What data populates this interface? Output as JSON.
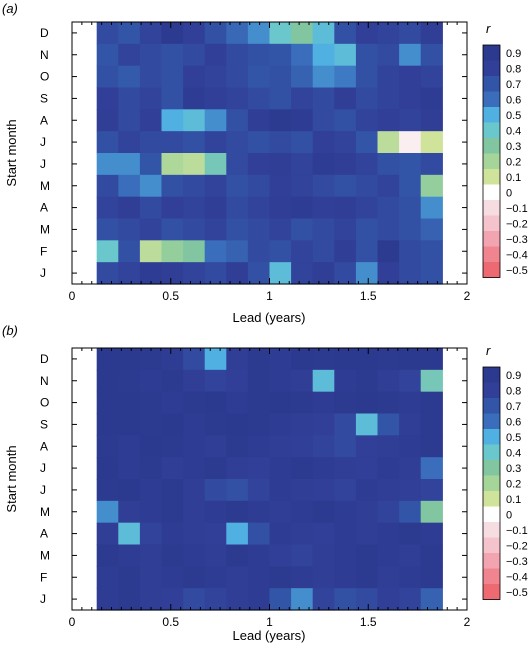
{
  "chart_data": [
    {
      "type": "heatmap",
      "panel_label": "(a)",
      "xlabel": "Lead (years)",
      "ylabel": "Start month",
      "x_ticks": [
        "0",
        "0.5",
        "1",
        "1.5",
        "2"
      ],
      "xlim": [
        0,
        2
      ],
      "data_x_range": [
        0.125,
        1.875
      ],
      "rows": [
        "D",
        "N",
        "O",
        "S",
        "A",
        "J",
        "J",
        "M",
        "A",
        "M",
        "F",
        "J"
      ],
      "colorbar_title": "r",
      "colorbar_ticks": [
        "0.9",
        "0.8",
        "0.7",
        "0.6",
        "0.5",
        "0.4",
        "0.3",
        "0.2",
        "0.1",
        "0",
        "−0.1",
        "−0.2",
        "−0.3",
        "−0.4",
        "−0.5"
      ],
      "colorbar_colors": [
        "#2b3a8e",
        "#313f98",
        "#3355a7",
        "#3a6dbb",
        "#50b0e2",
        "#6ac8cd",
        "#81c6a0",
        "#a6d59a",
        "#cfe39a",
        "#ffffff",
        "#f6dde2",
        "#f4c3cb",
        "#f2a5b0",
        "#f08590",
        "#ee6a72"
      ],
      "row_values": [
        [
          0.75,
          0.7,
          0.78,
          0.88,
          0.8,
          0.72,
          0.62,
          0.55,
          0.4,
          0.3,
          0.45,
          0.72,
          0.8,
          0.78,
          0.75,
          0.82
        ],
        [
          0.7,
          0.78,
          0.75,
          0.72,
          0.75,
          0.8,
          0.75,
          0.72,
          0.7,
          0.6,
          0.5,
          0.45,
          0.72,
          0.75,
          0.55,
          0.72
        ],
        [
          0.72,
          0.68,
          0.75,
          0.72,
          0.8,
          0.78,
          0.75,
          0.7,
          0.72,
          0.65,
          0.55,
          0.58,
          0.72,
          0.78,
          0.8,
          0.78
        ],
        [
          0.8,
          0.75,
          0.78,
          0.72,
          0.85,
          0.8,
          0.78,
          0.75,
          0.72,
          0.78,
          0.75,
          0.82,
          0.75,
          0.78,
          0.8,
          0.85
        ],
        [
          0.82,
          0.75,
          0.8,
          0.5,
          0.45,
          0.55,
          0.72,
          0.82,
          0.88,
          0.85,
          0.75,
          0.72,
          0.78,
          0.8,
          0.78,
          0.82
        ],
        [
          0.72,
          0.78,
          0.75,
          0.75,
          0.72,
          0.78,
          0.75,
          0.72,
          0.75,
          0.72,
          0.8,
          0.78,
          0.7,
          0.15,
          -0.05,
          0.1
        ],
        [
          0.55,
          0.55,
          0.7,
          0.18,
          0.15,
          0.35,
          0.75,
          0.8,
          0.82,
          0.78,
          0.85,
          0.82,
          0.78,
          0.72,
          0.7,
          0.75
        ],
        [
          0.75,
          0.6,
          0.55,
          0.72,
          0.75,
          0.78,
          0.72,
          0.75,
          0.8,
          0.78,
          0.75,
          0.72,
          0.75,
          0.78,
          0.7,
          0.25
        ],
        [
          0.78,
          0.82,
          0.75,
          0.8,
          0.78,
          0.82,
          0.75,
          0.78,
          0.82,
          0.85,
          0.8,
          0.82,
          0.78,
          0.75,
          0.72,
          0.55
        ],
        [
          0.72,
          0.75,
          0.78,
          0.72,
          0.75,
          0.78,
          0.72,
          0.75,
          0.78,
          0.72,
          0.75,
          0.78,
          0.72,
          0.75,
          0.72,
          0.65
        ],
        [
          0.4,
          0.72,
          0.15,
          0.25,
          0.3,
          0.6,
          0.65,
          0.75,
          0.72,
          0.78,
          0.75,
          0.82,
          0.72,
          0.88,
          0.75,
          0.72
        ],
        [
          0.75,
          0.78,
          0.85,
          0.82,
          0.78,
          0.75,
          0.82,
          0.72,
          0.45,
          0.78,
          0.82,
          0.75,
          0.55,
          0.8,
          0.75,
          0.72
        ]
      ]
    },
    {
      "type": "heatmap",
      "panel_label": "(b)",
      "xlabel": "Lead (years)",
      "ylabel": "Start month",
      "x_ticks": [
        "0",
        "0.5",
        "1",
        "1.5",
        "2"
      ],
      "xlim": [
        0,
        2
      ],
      "data_x_range": [
        0.125,
        1.875
      ],
      "rows": [
        "D",
        "N",
        "O",
        "S",
        "A",
        "J",
        "J",
        "M",
        "A",
        "M",
        "F",
        "J"
      ],
      "colorbar_title": "r",
      "colorbar_ticks": [
        "0.9",
        "0.8",
        "0.7",
        "0.6",
        "0.5",
        "0.4",
        "0.3",
        "0.2",
        "0.1",
        "0",
        "−0.1",
        "−0.2",
        "−0.3",
        "−0.4",
        "−0.5"
      ],
      "colorbar_colors": [
        "#2b3a8e",
        "#313f98",
        "#3355a7",
        "#3a6dbb",
        "#50b0e2",
        "#6ac8cd",
        "#81c6a0",
        "#a6d59a",
        "#cfe39a",
        "#ffffff",
        "#f6dde2",
        "#f4c3cb",
        "#f2a5b0",
        "#f08590",
        "#ee6a72"
      ],
      "row_values": [
        [
          0.92,
          0.9,
          0.88,
          0.85,
          0.75,
          0.5,
          0.82,
          0.88,
          0.85,
          0.9,
          0.88,
          0.92,
          0.9,
          0.88,
          0.9,
          0.92
        ],
        [
          0.9,
          0.88,
          0.85,
          0.88,
          0.82,
          0.78,
          0.8,
          0.88,
          0.85,
          0.82,
          0.45,
          0.85,
          0.88,
          0.82,
          0.78,
          0.35
        ],
        [
          0.92,
          0.9,
          0.88,
          0.85,
          0.88,
          0.9,
          0.85,
          0.88,
          0.9,
          0.88,
          0.85,
          0.88,
          0.9,
          0.88,
          0.85,
          0.88
        ],
        [
          0.9,
          0.92,
          0.88,
          0.9,
          0.85,
          0.88,
          0.9,
          0.88,
          0.85,
          0.82,
          0.8,
          0.75,
          0.45,
          0.7,
          0.82,
          0.88
        ],
        [
          0.88,
          0.85,
          0.9,
          0.88,
          0.85,
          0.82,
          0.88,
          0.85,
          0.82,
          0.8,
          0.78,
          0.75,
          0.8,
          0.82,
          0.85,
          0.88
        ],
        [
          0.9,
          0.85,
          0.88,
          0.82,
          0.85,
          0.88,
          0.82,
          0.8,
          0.85,
          0.88,
          0.85,
          0.82,
          0.8,
          0.85,
          0.82,
          0.6
        ],
        [
          0.88,
          0.9,
          0.85,
          0.88,
          0.82,
          0.75,
          0.72,
          0.78,
          0.85,
          0.82,
          0.8,
          0.78,
          0.85,
          0.82,
          0.8,
          0.78
        ],
        [
          0.55,
          0.82,
          0.85,
          0.88,
          0.82,
          0.85,
          0.88,
          0.85,
          0.82,
          0.85,
          0.88,
          0.85,
          0.82,
          0.78,
          0.7,
          0.3
        ],
        [
          0.82,
          0.45,
          0.78,
          0.85,
          0.82,
          0.8,
          0.5,
          0.72,
          0.85,
          0.82,
          0.8,
          0.85,
          0.82,
          0.85,
          0.88,
          0.85
        ],
        [
          0.88,
          0.85,
          0.82,
          0.88,
          0.85,
          0.82,
          0.88,
          0.85,
          0.8,
          0.78,
          0.82,
          0.85,
          0.88,
          0.85,
          0.82,
          0.88
        ],
        [
          0.85,
          0.88,
          0.82,
          0.85,
          0.88,
          0.85,
          0.82,
          0.85,
          0.88,
          0.85,
          0.82,
          0.85,
          0.88,
          0.82,
          0.85,
          0.88
        ],
        [
          0.85,
          0.88,
          0.82,
          0.8,
          0.75,
          0.78,
          0.82,
          0.85,
          0.7,
          0.55,
          0.78,
          0.72,
          0.75,
          0.8,
          0.78,
          0.65
        ]
      ]
    }
  ]
}
